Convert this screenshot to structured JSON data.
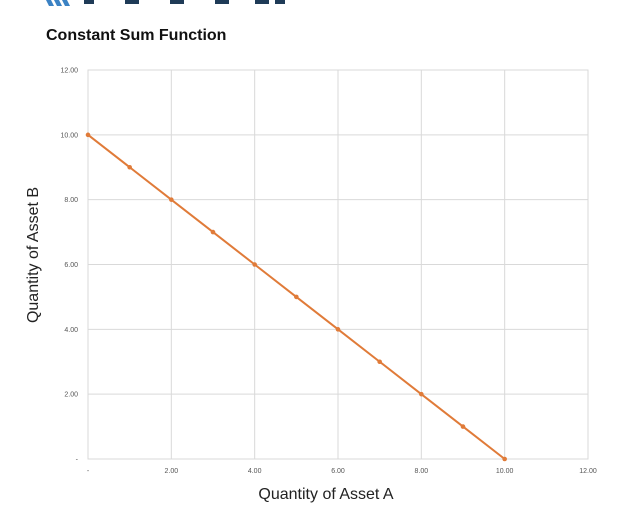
{
  "chart_data": {
    "type": "line",
    "title": "Constant Sum Function",
    "xlabel": "Quantity of Asset A",
    "ylabel": "Quantity of Asset B",
    "xlim": [
      0,
      12
    ],
    "ylim": [
      0,
      12
    ],
    "x_ticks": [
      {
        "value": 0,
        "label": "-"
      },
      {
        "value": 2,
        "label": "2.00"
      },
      {
        "value": 4,
        "label": "4.00"
      },
      {
        "value": 6,
        "label": "6.00"
      },
      {
        "value": 8,
        "label": "8.00"
      },
      {
        "value": 10,
        "label": "10.00"
      },
      {
        "value": 12,
        "label": "12.00"
      }
    ],
    "y_ticks": [
      {
        "value": 0,
        "label": "-"
      },
      {
        "value": 2,
        "label": "2.00"
      },
      {
        "value": 4,
        "label": "4.00"
      },
      {
        "value": 6,
        "label": "6.00"
      },
      {
        "value": 8,
        "label": "8.00"
      },
      {
        "value": 10,
        "label": "10.00"
      },
      {
        "value": 12,
        "label": "12.00"
      }
    ],
    "grid": true,
    "line_color": "#e07b39",
    "series": [
      {
        "x": [
          0,
          1,
          2,
          3,
          4,
          5,
          6,
          7,
          8,
          9,
          10
        ],
        "y": [
          10,
          9,
          8,
          7,
          6,
          5,
          4,
          3,
          2,
          1,
          0
        ]
      }
    ]
  },
  "logo": {
    "accent_color": "#3b82c4",
    "letter_color": "#1f3b57"
  }
}
